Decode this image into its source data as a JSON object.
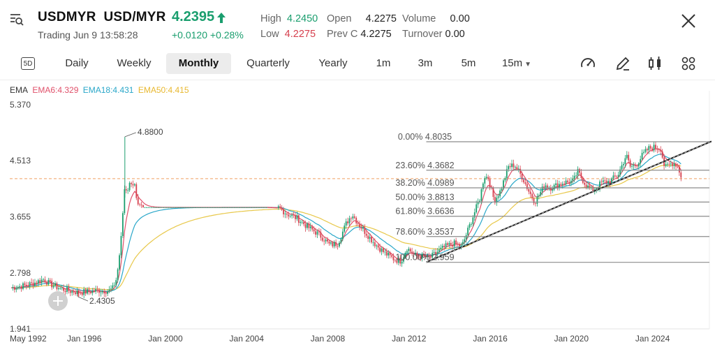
{
  "header": {
    "symbol": "USDMYR",
    "name": "USD/MYR",
    "status": "Trading",
    "datetime": "Jun 9 13:58:28",
    "price": "4.2395",
    "change": "+0.0120",
    "change_pct": "+0.28%",
    "stats": {
      "high_label": "High",
      "high": "4.2450",
      "low_label": "Low",
      "low": "4.2275",
      "open_label": "Open",
      "open": "4.2275",
      "prevc_label": "Prev C",
      "prevc": "4.2275",
      "volume_label": "Volume",
      "volume": "0.00",
      "turnover_label": "Turnover",
      "turnover": "0.00"
    }
  },
  "tabs": {
    "items": [
      "Daily",
      "Weekly",
      "Monthly",
      "Quarterly",
      "Yearly",
      "1m",
      "3m",
      "5m",
      "15m"
    ],
    "active": "Monthly",
    "icon_5d": "5D"
  },
  "indicators": {
    "label": "EMA",
    "ema6": "EMA6:4.329",
    "ema18": "EMA18:4.431",
    "ema50": "EMA50:4.415"
  },
  "colors": {
    "up": "#1a9e6e",
    "down": "#d6404e",
    "ema6": "#e0506a",
    "ema18": "#2aa7c9",
    "ema50": "#e8c84a",
    "fib": "#8c8c8c",
    "current_price_line": "#f0a060"
  },
  "chart_data": {
    "type": "candlestick",
    "title": "USDMYR Monthly",
    "ylim": [
      1.941,
      5.37
    ],
    "xlim": [
      1992.33,
      2026.8
    ],
    "y_ticks": [
      "5.370",
      "4.513",
      "3.655",
      "2.798",
      "1.941"
    ],
    "x_ticks": [
      "May 1992",
      "Jan 1996",
      "Jan 2000",
      "Jan 2004",
      "Jan 2008",
      "Jan 2012",
      "Jan 2016",
      "Jan 2020",
      "Jan 2024"
    ],
    "x_tick_years": [
      1992.33,
      1996,
      2000,
      2004,
      2008,
      2012,
      2016,
      2020,
      2024
    ],
    "current_price": 4.2395,
    "annotations": [
      {
        "label": "4.8800",
        "x": 1998.0,
        "y": 4.88
      },
      {
        "label": "2.4305",
        "x": 1995.7,
        "y": 2.4305
      }
    ],
    "fibonacci": {
      "from_year": 2012.85,
      "to_year": 2026.9,
      "levels": [
        {
          "label": "0.00% 4.8035",
          "value": 4.8035
        },
        {
          "label": "23.60% 4.3682",
          "value": 4.3682
        },
        {
          "label": "38.20% 4.0989",
          "value": 4.0989
        },
        {
          "label": "50.00% 3.8813",
          "value": 3.8813
        },
        {
          "label": "61.80% 3.6636",
          "value": 3.6636
        },
        {
          "label": "78.60% 3.3537",
          "value": 3.3537
        },
        {
          "label": "100.00% 2.959",
          "value": 2.959
        }
      ]
    },
    "trendline": {
      "from": [
        2012.85,
        2.96
      ],
      "to": [
        2026.9,
        4.81
      ]
    },
    "closes": [
      [
        1992.4,
        2.57
      ],
      [
        1993.0,
        2.6
      ],
      [
        1993.5,
        2.64
      ],
      [
        1994.0,
        2.7
      ],
      [
        1994.3,
        2.63
      ],
      [
        1994.8,
        2.56
      ],
      [
        1995.3,
        2.52
      ],
      [
        1995.8,
        2.5
      ],
      [
        1996.2,
        2.51
      ],
      [
        1996.7,
        2.53
      ],
      [
        1997.2,
        2.52
      ],
      [
        1997.4,
        2.56
      ],
      [
        1997.6,
        2.72
      ],
      [
        1997.8,
        3.25
      ],
      [
        1997.95,
        3.95
      ],
      [
        1998.0,
        4.15
      ],
      [
        1998.1,
        4.05
      ],
      [
        1998.3,
        4.2
      ],
      [
        1998.5,
        4.12
      ],
      [
        1998.6,
        3.8
      ],
      [
        1998.75,
        3.8
      ],
      [
        1999.5,
        3.8
      ],
      [
        2002.0,
        3.8
      ],
      [
        2005.0,
        3.8
      ],
      [
        2005.6,
        3.79
      ],
      [
        2006.0,
        3.7
      ],
      [
        2006.5,
        3.63
      ],
      [
        2007.0,
        3.5
      ],
      [
        2007.5,
        3.4
      ],
      [
        2007.8,
        3.32
      ],
      [
        2008.1,
        3.22
      ],
      [
        2008.5,
        3.25
      ],
      [
        2008.9,
        3.55
      ],
      [
        2009.2,
        3.7
      ],
      [
        2009.5,
        3.55
      ],
      [
        2009.9,
        3.4
      ],
      [
        2010.3,
        3.25
      ],
      [
        2010.8,
        3.1
      ],
      [
        2011.3,
        3.0
      ],
      [
        2011.6,
        2.98
      ],
      [
        2011.9,
        3.18
      ],
      [
        2012.3,
        3.06
      ],
      [
        2012.7,
        3.05
      ],
      [
        2013.0,
        3.02
      ],
      [
        2013.4,
        3.12
      ],
      [
        2013.8,
        3.2
      ],
      [
        2014.2,
        3.25
      ],
      [
        2014.6,
        3.2
      ],
      [
        2014.9,
        3.45
      ],
      [
        2015.2,
        3.7
      ],
      [
        2015.5,
        3.95
      ],
      [
        2015.7,
        4.28
      ],
      [
        2015.9,
        4.25
      ],
      [
        2016.2,
        3.9
      ],
      [
        2016.5,
        4.05
      ],
      [
        2016.9,
        4.42
      ],
      [
        2017.2,
        4.45
      ],
      [
        2017.6,
        4.25
      ],
      [
        2017.9,
        4.05
      ],
      [
        2018.2,
        3.88
      ],
      [
        2018.7,
        4.15
      ],
      [
        2019.0,
        4.1
      ],
      [
        2019.6,
        4.18
      ],
      [
        2020.1,
        4.2
      ],
      [
        2020.3,
        4.35
      ],
      [
        2020.7,
        4.15
      ],
      [
        2021.0,
        4.05
      ],
      [
        2021.5,
        4.18
      ],
      [
        2021.9,
        4.2
      ],
      [
        2022.3,
        4.3
      ],
      [
        2022.7,
        4.6
      ],
      [
        2022.9,
        4.42
      ],
      [
        2023.2,
        4.45
      ],
      [
        2023.5,
        4.6
      ],
      [
        2023.8,
        4.7
      ],
      [
        2024.1,
        4.72
      ],
      [
        2024.4,
        4.7
      ],
      [
        2024.6,
        4.4
      ],
      [
        2024.8,
        4.45
      ],
      [
        2025.0,
        4.48
      ],
      [
        2025.2,
        4.45
      ],
      [
        2025.45,
        4.24
      ]
    ]
  }
}
